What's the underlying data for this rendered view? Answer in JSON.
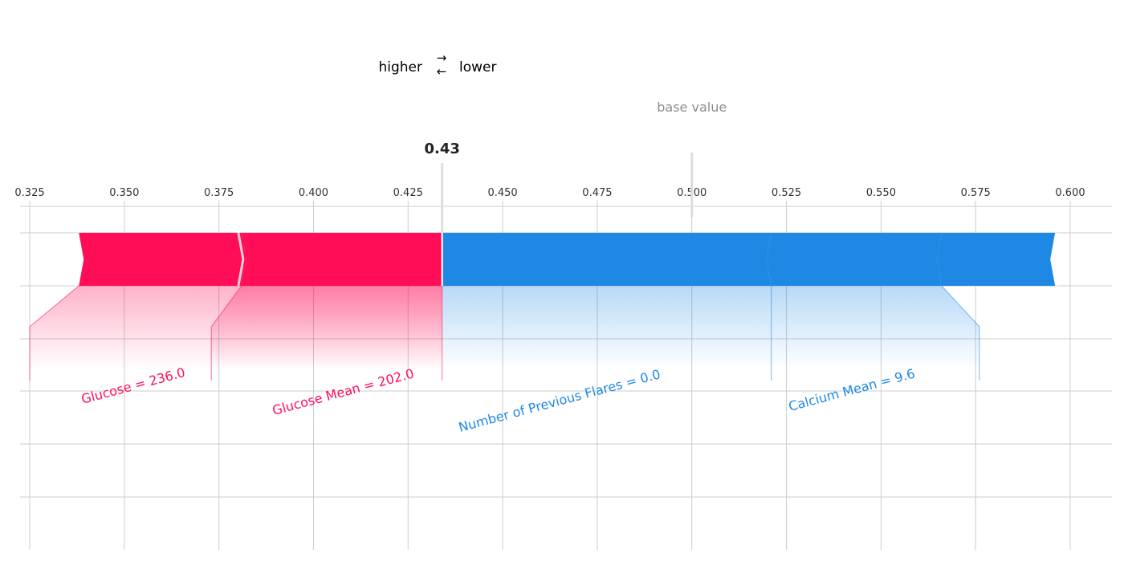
{
  "chart_data": {
    "type": "force_plot",
    "legend": {
      "higher": "higher",
      "lower": "lower",
      "right_arrow": "→",
      "left_arrow": "←"
    },
    "output_value": 0.434,
    "output_label": "0.43",
    "base_value": 0.5,
    "base_label": "base value",
    "xlim": [
      0.325,
      0.6
    ],
    "ticks": [
      {
        "value": 0.325,
        "label": "0.325"
      },
      {
        "value": 0.35,
        "label": "0.350"
      },
      {
        "value": 0.375,
        "label": "0.375"
      },
      {
        "value": 0.4,
        "label": "0.400"
      },
      {
        "value": 0.425,
        "label": "0.425"
      },
      {
        "value": 0.45,
        "label": "0.450"
      },
      {
        "value": 0.475,
        "label": "0.475"
      },
      {
        "value": 0.5,
        "label": "0.500"
      },
      {
        "value": 0.525,
        "label": "0.525"
      },
      {
        "value": 0.55,
        "label": "0.550"
      },
      {
        "value": 0.575,
        "label": "0.575"
      },
      {
        "value": 0.6,
        "label": "0.600"
      }
    ],
    "positive_features": [
      {
        "name": "Glucose = 236.0",
        "start": 0.338,
        "end": 0.381,
        "label_value": 0.325
      },
      {
        "name": "Glucose Mean = 202.0",
        "start": 0.381,
        "end": 0.434,
        "label_value": 0.373
      }
    ],
    "negative_features": [
      {
        "name": "Number of Previous Flares = 0.0",
        "start": 0.434,
        "end": 0.521,
        "label_value": 0.521
      },
      {
        "name": "Calcium Mean = 9.6",
        "start": 0.521,
        "end": 0.566,
        "label_value": 0.576
      },
      {
        "name": "",
        "start": 0.566,
        "end": 0.596,
        "label_value": null
      }
    ],
    "colors": {
      "positive": "#ff0d57",
      "negative": "#1e88e5",
      "grid": "#cccccc",
      "base": "#8c8c8c"
    }
  }
}
